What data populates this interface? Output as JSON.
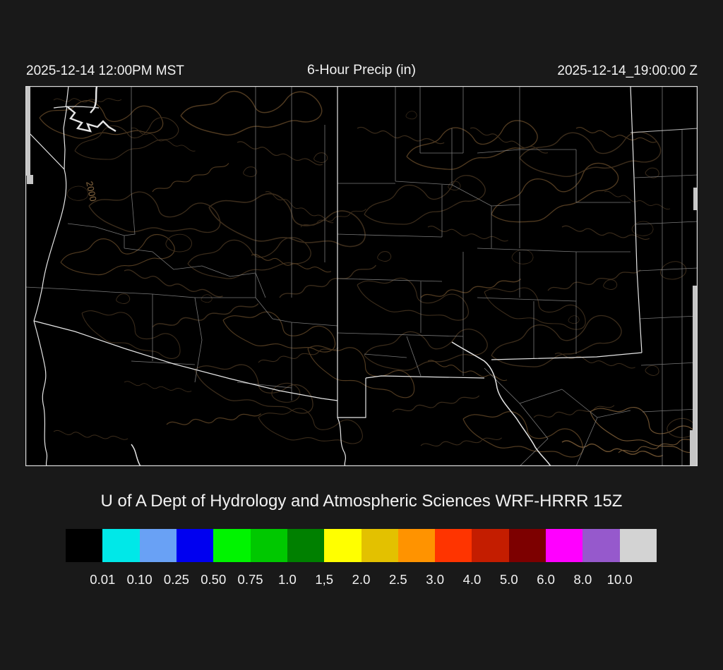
{
  "header": {
    "left_timestamp": "2025-12-14 12:00PM MST",
    "title": "6-Hour Precip (in)",
    "right_timestamp": "2025-12-14_19:00:00 Z"
  },
  "map": {
    "contour_label": "2000"
  },
  "footer": {
    "credit": "U of A Dept of Hydrology and Atmospheric Sciences WRF-HRRR 15Z"
  },
  "colorbar": {
    "units": "in",
    "tick_labels": [
      "0.01",
      "0.10",
      "0.25",
      "0.50",
      "0.75",
      "1.0",
      "1,5",
      "2.0",
      "2.5",
      "3.0",
      "4.0",
      "5.0",
      "6.0",
      "8.0",
      "10.0"
    ],
    "colors": [
      "#000000",
      "#00e8e8",
      "#69a1f5",
      "#0000f0",
      "#00f400",
      "#00c800",
      "#008000",
      "#ffff00",
      "#e3c100",
      "#ff9300",
      "#ff3400",
      "#c41d00",
      "#7d0000",
      "#ff00ff",
      "#9659cc",
      "#d3d3d3"
    ]
  }
}
